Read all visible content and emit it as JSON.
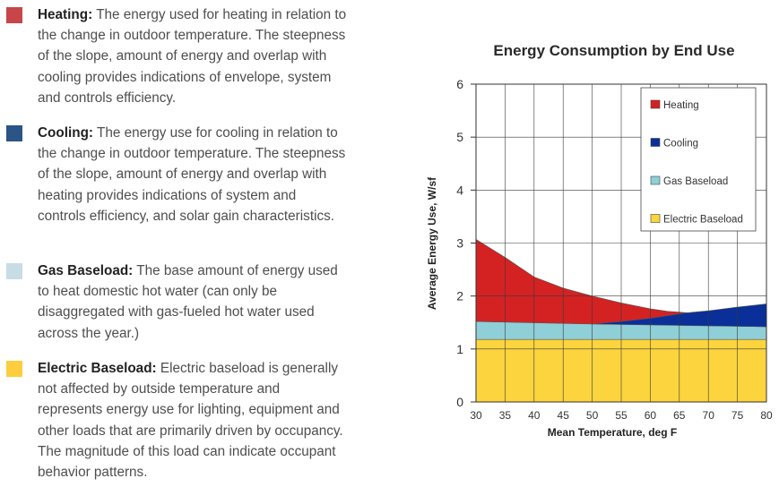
{
  "descriptions": [
    {
      "name": "Heating:",
      "text": "The energy used for heating in relation to the change in outdoor temperature. The steepness of the slope, amount of energy and overlap with cooling provides indications of envelope, system and controls efficiency.",
      "color": "#c8454a"
    },
    {
      "name": "Cooling:",
      "text": "The energy use for cooling in relation to the change in outdoor temperature. The steepness of the slope, amount of energy and overlap with heating provides indications of system and controls efficiency, and solar gain characteristics.",
      "color": "#2b5487"
    },
    {
      "name": "Gas Baseload:",
      "text": "The base amount of energy used to heat domestic hot water (can only be disaggregated with gas-fueled hot water used across the year.)",
      "color": "#c8dce5"
    },
    {
      "name": "Electric Baseload:",
      "text": "Electric baseload is generally not affected by outside temperature and represents energy use for lighting, equipment and other loads that are primarily driven by occupancy. The magnitude of this load can indicate occupant behavior patterns.",
      "color": "#fcce3e"
    }
  ],
  "chart_data": {
    "type": "area",
    "title": "Energy Consumption by End Use",
    "xlabel": "Mean Temperature, deg F",
    "ylabel": "Average Energy Use, W/sf",
    "xlim": [
      30,
      80
    ],
    "ylim": [
      0,
      6
    ],
    "xticks": [
      30,
      35,
      40,
      45,
      50,
      55,
      60,
      65,
      70,
      75,
      80
    ],
    "yticks": [
      0,
      1,
      2,
      3,
      4,
      5,
      6
    ],
    "grid": true,
    "legend_position": "top-right",
    "series": [
      {
        "name": "Electric Baseload",
        "color": "#fcd43e",
        "boundary": [
          [
            30,
            0
          ],
          [
            80,
            0
          ],
          [
            80,
            1.18
          ],
          [
            30,
            1.18
          ]
        ]
      },
      {
        "name": "Gas Baseload",
        "color": "#8fcfd8",
        "boundary": [
          [
            30,
            1.18
          ],
          [
            80,
            1.18
          ],
          [
            80,
            1.42
          ],
          [
            30,
            1.52
          ]
        ]
      },
      {
        "name": "Cooling",
        "color": "#0a2f99",
        "boundary": [
          [
            50,
            1.47
          ],
          [
            80,
            1.42
          ],
          [
            80,
            1.85
          ],
          [
            75,
            1.79
          ],
          [
            70,
            1.72
          ],
          [
            66,
            1.68
          ],
          [
            60,
            1.58
          ],
          [
            55,
            1.52
          ],
          [
            50,
            1.47
          ]
        ]
      },
      {
        "name": "Heating",
        "color": "#d42223",
        "boundary": [
          [
            30,
            3.07
          ],
          [
            35,
            2.73
          ],
          [
            40,
            2.36
          ],
          [
            45,
            2.15
          ],
          [
            50,
            2.0
          ],
          [
            55,
            1.87
          ],
          [
            60,
            1.76
          ],
          [
            63,
            1.71
          ],
          [
            67,
            1.68
          ],
          [
            66,
            1.68
          ],
          [
            60,
            1.58
          ],
          [
            55,
            1.52
          ],
          [
            50,
            1.47
          ],
          [
            30,
            1.52
          ]
        ]
      }
    ],
    "legend_order": [
      "Heating",
      "Cooling",
      "Gas Baseload",
      "Electric Baseload"
    ]
  }
}
